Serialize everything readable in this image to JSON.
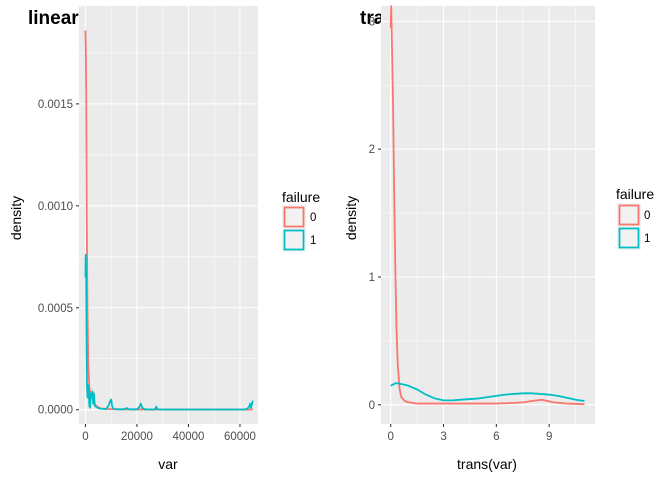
{
  "chart_data": [
    {
      "type": "line",
      "title": "linear",
      "xlabel": "var",
      "ylabel": "density",
      "xlim": [
        -2500,
        67000
      ],
      "ylim": [
        -7e-05,
        0.00198
      ],
      "x_ticks": [
        0,
        20000,
        40000,
        60000
      ],
      "x_tick_labels": [
        "0",
        "20000",
        "40000",
        "60000"
      ],
      "y_ticks": [
        0,
        0.0005,
        0.001,
        0.0015
      ],
      "y_tick_labels": [
        "0.0000",
        "0.0005",
        "0.0010",
        "0.0015"
      ],
      "grid": true,
      "legend": {
        "title": "failure",
        "position": "right",
        "entries": [
          "0",
          "1"
        ]
      },
      "series": [
        {
          "name": "0",
          "color": "#F8766D",
          "x": [
            0,
            150,
            300,
            500,
            800,
            1100,
            1500,
            2000,
            2600,
            3200,
            4000,
            5000,
            6000,
            8000,
            10000,
            15000,
            20000,
            30000,
            40000,
            50000,
            60000,
            63000,
            64500,
            65000
          ],
          "y": [
            0.00186,
            0.00176,
            0.00155,
            0.00095,
            0.00048,
            0.00022,
            0.00011,
            8e-05,
            6e-05,
            4e-05,
            2e-05,
            1.2e-05,
            6e-06,
            4e-06,
            3e-06,
            2e-06,
            1.5e-06,
            1e-06,
            1e-06,
            1e-06,
            1e-06,
            1e-06,
            1e-06,
            1e-06
          ]
        },
        {
          "name": "1",
          "color": "#00BFC4",
          "x": [
            0,
            100,
            200,
            300,
            400,
            500,
            600,
            800,
            1000,
            1200,
            1500,
            1800,
            2100,
            2400,
            2700,
            3000,
            3300,
            3600,
            4000,
            5000,
            6000,
            8000,
            9000,
            9500,
            10000,
            10400,
            11000,
            13000,
            15000,
            16000,
            17000,
            20000,
            21000,
            21500,
            22000,
            23000,
            25000,
            27000,
            27500,
            28000,
            30000,
            40000,
            50000,
            60000,
            62000,
            63000,
            63500,
            64000,
            64300,
            64600,
            65000
          ],
          "y": [
            0.00065,
            0.00076,
            0.00074,
            0.0006,
            0.00036,
            0.00022,
            0.00012,
            6e-05,
            0.0001,
            0.00012,
            2e-05,
            1e-05,
            8e-05,
            6e-05,
            9e-05,
            3e-05,
            8e-05,
            2e-05,
            1.5e-05,
            8e-06,
            5e-06,
            3e-06,
            2e-05,
            4e-05,
            5e-05,
            1.5e-05,
            3e-06,
            2e-06,
            2e-06,
            8e-06,
            2e-06,
            2e-06,
            1.5e-05,
            3e-05,
            1e-05,
            2e-06,
            1e-06,
            1e-06,
            1.5e-05,
            2e-06,
            1e-06,
            1e-06,
            1e-06,
            1e-06,
            1e-06,
            6e-06,
            1.5e-05,
            3e-05,
            1e-05,
            2.5e-05,
            4.5e-05
          ]
        }
      ]
    },
    {
      "type": "line",
      "title": "trans",
      "xlabel": "trans(var)",
      "ylabel": "density",
      "xlim": [
        -0.55,
        11.6
      ],
      "ylim": [
        -0.15,
        3.12
      ],
      "x_ticks": [
        0,
        3,
        6,
        9
      ],
      "x_tick_labels": [
        "0",
        "3",
        "6",
        "9"
      ],
      "y_ticks": [
        0,
        1,
        2,
        3
      ],
      "y_tick_labels": [
        "0",
        "1",
        "2",
        "3"
      ],
      "grid": true,
      "legend": {
        "title": "failure",
        "position": "right",
        "entries": [
          "0",
          "1"
        ]
      },
      "series": [
        {
          "name": "0",
          "color": "#F8766D",
          "x": [
            0,
            0.03,
            0.06,
            0.1,
            0.14,
            0.18,
            0.23,
            0.28,
            0.33,
            0.4,
            0.5,
            0.6,
            0.8,
            1.0,
            1.5,
            2.5,
            3.5,
            5.0,
            6.0,
            7.0,
            7.6,
            8.0,
            8.6,
            9.2,
            10.0,
            11.0
          ],
          "y": [
            2.95,
            3.12,
            2.9,
            2.6,
            2.3,
            1.85,
            1.35,
            0.95,
            0.6,
            0.32,
            0.13,
            0.06,
            0.03,
            0.02,
            0.01,
            0.01,
            0.01,
            0.01,
            0.01,
            0.015,
            0.02,
            0.03,
            0.04,
            0.02,
            0.01,
            0.005
          ]
        },
        {
          "name": "1",
          "color": "#00BFC4",
          "x": [
            0,
            0.3,
            0.7,
            1.0,
            1.5,
            2.0,
            2.5,
            3.0,
            3.5,
            4.0,
            4.5,
            5.0,
            5.5,
            6.0,
            6.5,
            7.0,
            7.5,
            8.0,
            8.5,
            9.0,
            9.5,
            10.0,
            10.5,
            11.0
          ],
          "y": [
            0.15,
            0.17,
            0.16,
            0.15,
            0.12,
            0.08,
            0.05,
            0.035,
            0.035,
            0.04,
            0.045,
            0.05,
            0.06,
            0.07,
            0.08,
            0.085,
            0.09,
            0.09,
            0.085,
            0.08,
            0.07,
            0.055,
            0.04,
            0.03
          ]
        }
      ]
    }
  ]
}
